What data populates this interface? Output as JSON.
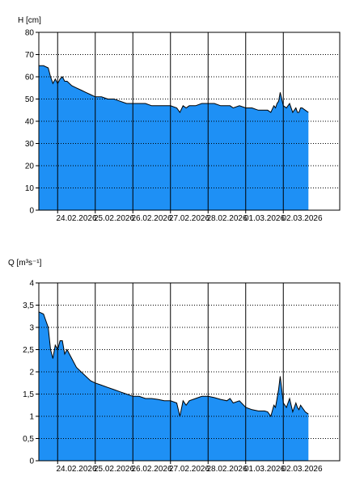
{
  "chart_data": [
    {
      "type": "area",
      "ylabel": "H [cm]",
      "ylim": [
        0,
        80
      ],
      "yticks": [
        0,
        10,
        20,
        30,
        40,
        50,
        60,
        70,
        80
      ],
      "xlim": [
        "23.02.2026 12:00",
        "03.03.2026 12:00"
      ],
      "xtick_labels": [
        "24.02.2026",
        "25.02.2026",
        "26.02.2026",
        "27.02.2026",
        "28.02.2026",
        "01.03.2026",
        "02.03.2026"
      ],
      "day_lines": [
        "24.02.2026",
        "25.02.2026",
        "26.02.2026",
        "27.02.2026",
        "28.02.2026",
        "01.03.2026",
        "02.03.2026"
      ],
      "grid": "horizontal dotted",
      "fill_color": "#1e90f5",
      "series": [
        {
          "x": [
            "23.02.2026 12:00",
            "23.02.2026 15:00",
            "23.02.2026 18:00",
            "23.02.2026 19:30",
            "23.02.2026 21:00",
            "23.02.2026 22:30",
            "24.02.2026 00:00",
            "24.02.2026 01:30",
            "24.02.2026 03:00",
            "24.02.2026 04:30",
            "24.02.2026 06:00",
            "24.02.2026 09:00",
            "24.02.2026 12:00",
            "24.02.2026 15:00",
            "24.02.2026 18:00",
            "24.02.2026 21:00",
            "25.02.2026 00:00",
            "25.02.2026 04:00",
            "25.02.2026 08:00",
            "25.02.2026 12:00",
            "25.02.2026 16:00",
            "25.02.2026 20:00",
            "26.02.2026 00:00",
            "26.02.2026 04:00",
            "26.02.2026 08:00",
            "26.02.2026 12:00",
            "26.02.2026 16:00",
            "26.02.2026 20:00",
            "27.02.2026 00:00",
            "27.02.2026 04:00",
            "27.02.2026 06:00",
            "27.02.2026 08:00",
            "27.02.2026 10:00",
            "27.02.2026 12:00",
            "27.02.2026 16:00",
            "27.02.2026 20:00",
            "28.02.2026 00:00",
            "28.02.2026 04:00",
            "28.02.2026 08:00",
            "28.02.2026 12:00",
            "28.02.2026 14:00",
            "28.02.2026 16:00",
            "28.02.2026 20:00",
            "01.03.2026 00:00",
            "01.03.2026 04:00",
            "01.03.2026 08:00",
            "01.03.2026 12:00",
            "01.03.2026 14:00",
            "01.03.2026 16:00",
            "01.03.2026 18:00",
            "01.03.2026 19:00",
            "01.03.2026 20:00",
            "01.03.2026 21:00",
            "01.03.2026 22:00",
            "02.03.2026 00:00",
            "02.03.2026 02:00",
            "02.03.2026 04:00",
            "02.03.2026 06:00",
            "02.03.2026 08:00",
            "02.03.2026 09:00",
            "02.03.2026 10:00",
            "02.03.2026 11:00",
            "02.03.2026 12:00",
            "02.03.2026 14:00",
            "02.03.2026 16:00"
          ],
          "y": [
            65,
            65,
            64,
            60,
            57,
            59,
            57,
            59,
            60,
            58,
            58,
            56,
            55,
            54,
            53,
            52,
            51,
            51,
            50,
            50,
            49,
            48,
            48,
            48,
            48,
            47,
            47,
            47,
            47,
            46,
            44,
            47,
            46,
            47,
            47,
            48,
            48,
            48,
            47,
            47,
            47,
            46,
            47,
            46,
            46,
            45,
            45,
            45,
            44,
            47,
            46,
            48,
            49,
            53,
            47,
            46,
            48,
            44,
            46,
            44,
            44,
            46,
            46,
            45,
            44
          ]
        }
      ]
    },
    {
      "type": "area",
      "ylabel": "Q [m³s⁻¹]",
      "ylim": [
        0,
        4
      ],
      "yticks": [
        "0",
        "0,5",
        "1",
        "1,5",
        "2",
        "2,5",
        "3",
        "3,5",
        "4"
      ],
      "xlim": [
        "23.02.2026 12:00",
        "03.03.2026 12:00"
      ],
      "xtick_labels": [
        "24.02.2026",
        "25.02.2026",
        "26.02.2026",
        "27.02.2026",
        "28.02.2026",
        "01.03.2026",
        "02.03.2026"
      ],
      "day_lines": [
        "24.02.2026",
        "25.02.2026",
        "26.02.2026",
        "27.02.2026",
        "28.02.2026",
        "01.03.2026",
        "02.03.2026"
      ],
      "grid": "horizontal dotted",
      "fill_color": "#1e90f5",
      "series": [
        {
          "x": [
            "23.02.2026 12:00",
            "23.02.2026 15:00",
            "23.02.2026 18:00",
            "23.02.2026 19:30",
            "23.02.2026 21:00",
            "23.02.2026 22:30",
            "24.02.2026 00:00",
            "24.02.2026 01:30",
            "24.02.2026 03:00",
            "24.02.2026 04:30",
            "24.02.2026 06:00",
            "24.02.2026 09:00",
            "24.02.2026 12:00",
            "24.02.2026 15:00",
            "24.02.2026 18:00",
            "24.02.2026 21:00",
            "25.02.2026 00:00",
            "25.02.2026 04:00",
            "25.02.2026 08:00",
            "25.02.2026 12:00",
            "25.02.2026 16:00",
            "25.02.2026 20:00",
            "26.02.2026 00:00",
            "26.02.2026 04:00",
            "26.02.2026 08:00",
            "26.02.2026 12:00",
            "26.02.2026 16:00",
            "26.02.2026 20:00",
            "27.02.2026 00:00",
            "27.02.2026 04:00",
            "27.02.2026 06:00",
            "27.02.2026 08:00",
            "27.02.2026 10:00",
            "27.02.2026 12:00",
            "27.02.2026 16:00",
            "27.02.2026 20:00",
            "28.02.2026 00:00",
            "28.02.2026 04:00",
            "28.02.2026 08:00",
            "28.02.2026 12:00",
            "28.02.2026 14:00",
            "28.02.2026 16:00",
            "28.02.2026 20:00",
            "01.03.2026 00:00",
            "01.03.2026 04:00",
            "01.03.2026 08:00",
            "01.03.2026 12:00",
            "01.03.2026 14:00",
            "01.03.2026 16:00",
            "01.03.2026 18:00",
            "01.03.2026 19:00",
            "01.03.2026 20:00",
            "01.03.2026 21:00",
            "01.03.2026 22:00",
            "02.03.2026 00:00",
            "02.03.2026 02:00",
            "02.03.2026 04:00",
            "02.03.2026 06:00",
            "02.03.2026 08:00",
            "02.03.2026 09:00",
            "02.03.2026 10:00",
            "02.03.2026 11:00",
            "02.03.2026 12:00",
            "02.03.2026 14:00",
            "02.03.2026 16:00"
          ],
          "y": [
            3.35,
            3.3,
            3.0,
            2.5,
            2.3,
            2.6,
            2.5,
            2.7,
            2.7,
            2.4,
            2.5,
            2.3,
            2.1,
            2.0,
            1.9,
            1.8,
            1.75,
            1.7,
            1.65,
            1.6,
            1.55,
            1.5,
            1.45,
            1.45,
            1.4,
            1.4,
            1.38,
            1.35,
            1.35,
            1.3,
            1.0,
            1.35,
            1.25,
            1.35,
            1.4,
            1.45,
            1.45,
            1.42,
            1.38,
            1.35,
            1.4,
            1.3,
            1.35,
            1.2,
            1.15,
            1.12,
            1.12,
            1.1,
            1.0,
            1.25,
            1.2,
            1.4,
            1.6,
            1.9,
            1.3,
            1.2,
            1.4,
            1.1,
            1.3,
            1.2,
            1.15,
            1.25,
            1.2,
            1.1,
            1.05
          ]
        }
      ]
    }
  ]
}
